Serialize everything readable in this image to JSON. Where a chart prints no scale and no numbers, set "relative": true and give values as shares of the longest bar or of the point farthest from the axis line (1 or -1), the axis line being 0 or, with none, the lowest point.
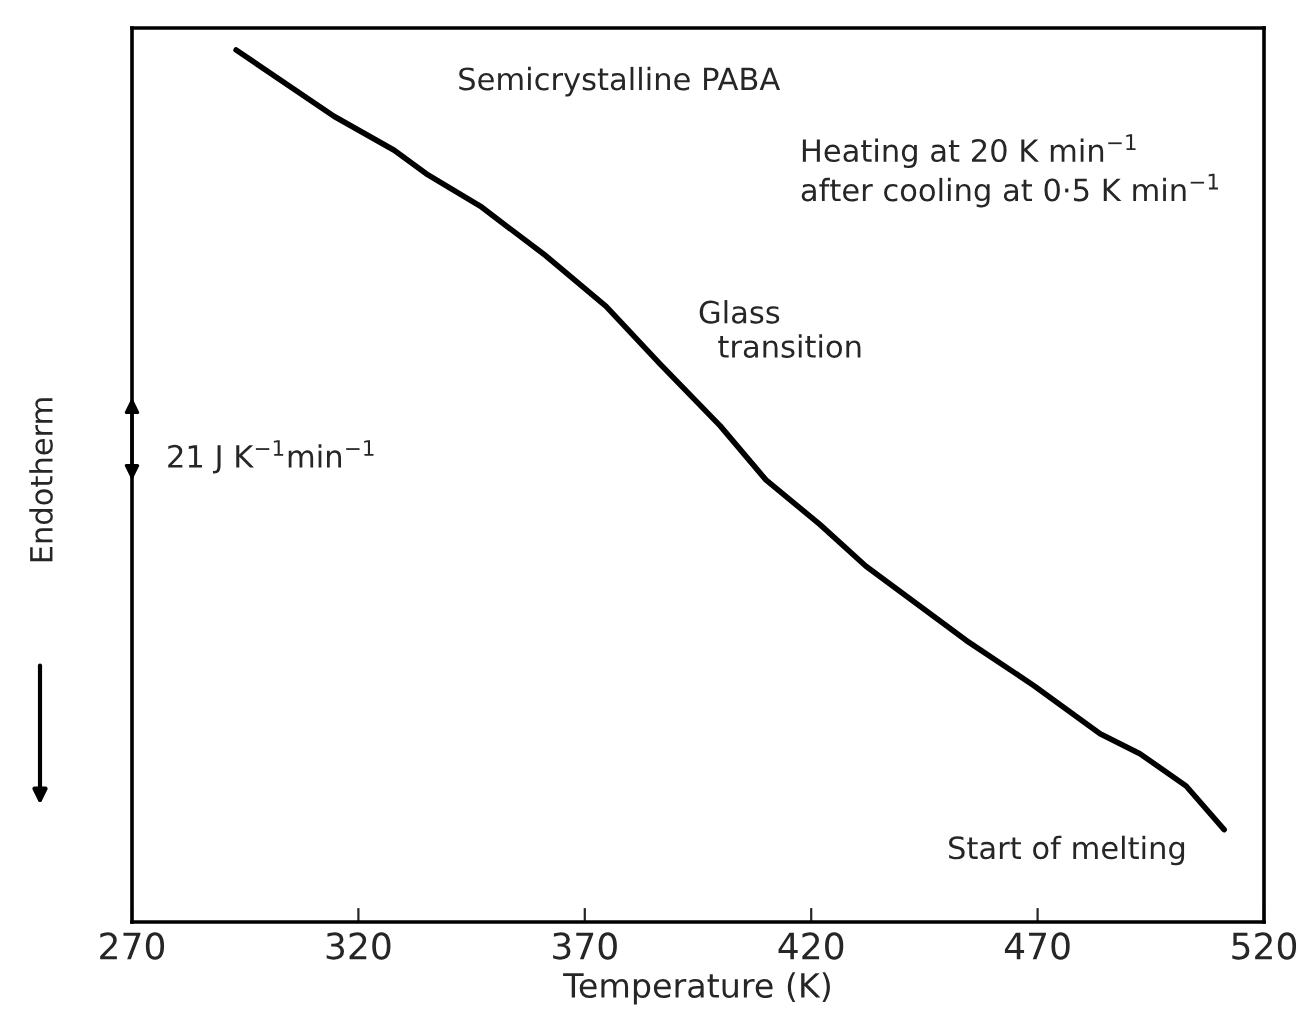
{
  "chart_data": {
    "type": "line",
    "relative": true,
    "xlabel": "Temperature (K)",
    "ylabel": "Endotherm",
    "xlim": [
      270,
      520
    ],
    "xticks": [
      270,
      320,
      370,
      420,
      470,
      520
    ],
    "x": [
      293.0,
      314.6,
      327.9,
      335.0,
      346.9,
      361.4,
      374.7,
      386.6,
      399.9,
      410.0,
      421.9,
      432.1,
      454.2,
      469.2,
      483.8,
      492.6,
      502.8,
      511.2
    ],
    "series": [
      {
        "color": "#000000",
        "values": [
          1,
          0.924,
          0.885,
          0.858,
          0.821,
          0.764,
          0.706,
          0.64,
          0.569,
          0.507,
          0.456,
          0.408,
          0.323,
          0.271,
          0.216,
          0.193,
          0.156,
          0.106
        ]
      }
    ],
    "annotations": [
      "Semicrystalline PABA",
      "Heating at 20 K min$^{−1}$\nafter cooling at 0·5 K min$^{−1}$",
      "Glass\n  transition",
      "Start of melting",
      "21 J K$^{−1}$min$^{−1}$"
    ],
    "grid": false,
    "legend": false,
    "marker": "none",
    "line_style": "solid"
  }
}
